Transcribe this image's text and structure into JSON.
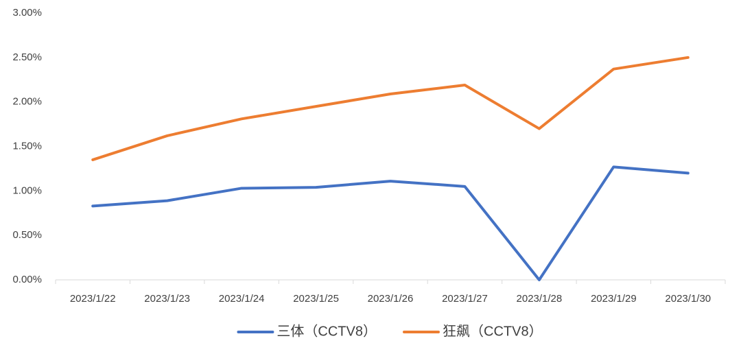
{
  "chart_data": {
    "type": "line",
    "categories": [
      "2023/1/22",
      "2023/1/23",
      "2023/1/24",
      "2023/1/25",
      "2023/1/26",
      "2023/1/27",
      "2023/1/28",
      "2023/1/29",
      "2023/1/30"
    ],
    "series": [
      {
        "name": "三体（CCTV8）",
        "color": "#4472c4",
        "values": [
          0.83,
          0.89,
          1.03,
          1.04,
          1.11,
          1.05,
          0,
          1.27,
          1.2
        ]
      },
      {
        "name": "狂飙（CCTV8）",
        "color": "#ed7d31",
        "values": [
          1.35,
          1.62,
          1.81,
          1.95,
          2.09,
          2.19,
          1.7,
          2.37,
          2.5
        ]
      }
    ],
    "ylim": [
      0,
      3
    ],
    "yticks": [
      {
        "value": 0,
        "label": "0.00%"
      },
      {
        "value": 0.5,
        "label": "0.50%"
      },
      {
        "value": 1,
        "label": "1.00%"
      },
      {
        "value": 1.5,
        "label": "1.50%"
      },
      {
        "value": 2,
        "label": "2.00%"
      },
      {
        "value": 2.5,
        "label": "2.50%"
      },
      {
        "value": 3,
        "label": "3.00%"
      }
    ],
    "grid": false,
    "legend": "bottom"
  }
}
